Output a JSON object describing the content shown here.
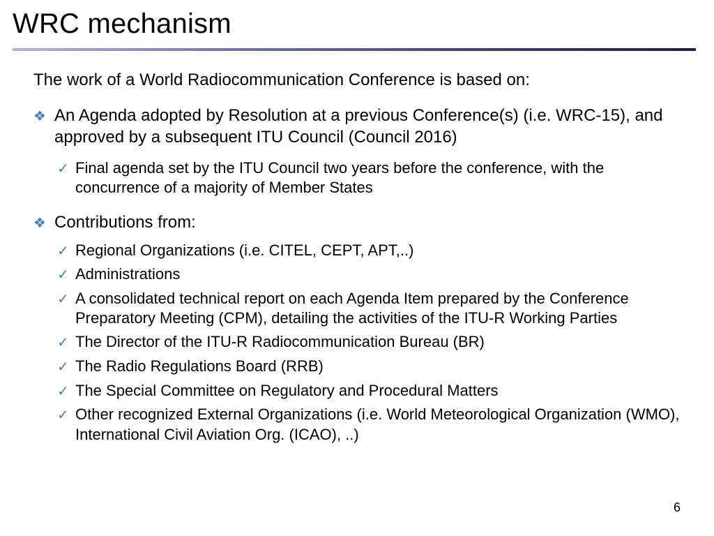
{
  "title": "WRC mechanism",
  "intro": "The work of a World Radiocommunication Conference is based on:",
  "bullet1": "An Agenda adopted by Resolution at a previous Conference(s) (i.e. WRC-15), and approved by a subsequent  ITU Council (Council 2016)",
  "bullet1_sub1": "Final agenda set by the ITU Council two years before the conference, with the concurrence of a majority of Member States",
  "bullet2": "Contributions from:",
  "bullet2_subs": [
    "Regional Organizations (i.e. CITEL, CEPT, APT,..)",
    "Administrations",
    "A consolidated technical report on each Agenda Item prepared by the Conference Preparatory Meeting (CPM), detailing the activities of the  ITU-R Working Parties",
    "The Director of the ITU-R Radiocommunication Bureau (BR)",
    "The Radio Regulations Board (RRB)",
    "The Special Committee on Regulatory and Procedural Matters",
    "Other recognized External Organizations (i.e. World Meteorological Organization (WMO), International Civil Aviation Org.  (ICAO), ..)"
  ],
  "page_number": "6",
  "colors": {
    "bullet_icon": "#4a7ebb",
    "divider_start": "#b0b4d6",
    "divider_end": "#1d2040",
    "text": "#000000",
    "background": "#ffffff"
  }
}
